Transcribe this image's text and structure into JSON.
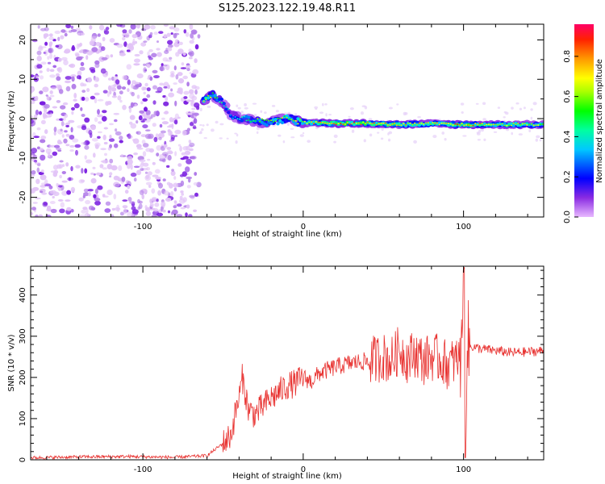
{
  "figure": {
    "title": "S125.2023.122.19.48.R11"
  },
  "chart_data": [
    {
      "type": "heatmap",
      "xlabel": "Height of straight line (km)",
      "ylabel": "Frequency (Hz)",
      "xlim": [
        -170,
        150
      ],
      "ylim": [
        -25,
        24
      ],
      "x_ticks": [
        "-100",
        "0",
        "100"
      ],
      "y_ticks": [
        "-20",
        "-10",
        "0",
        "10",
        "20"
      ],
      "colorbar": {
        "label": "Normalized spectral amplitude",
        "range": [
          0.0,
          0.96
        ],
        "ticks": [
          "0.0",
          "0.2",
          "0.4",
          "0.6",
          "0.8"
        ]
      },
      "noise_region": {
        "x_end": -65,
        "description": "scattered low-amplitude noise"
      },
      "signal_trace": [
        {
          "x": -62,
          "y": 5,
          "amp": 0.75
        },
        {
          "x": -56,
          "y": 6,
          "amp": 0.6
        },
        {
          "x": -50,
          "y": 4,
          "amp": 0.4
        },
        {
          "x": -45,
          "y": 1,
          "amp": 0.35
        },
        {
          "x": -38,
          "y": 0,
          "amp": 0.45
        },
        {
          "x": -30,
          "y": -0.5,
          "amp": 0.55
        },
        {
          "x": -20,
          "y": -1,
          "amp": 0.6
        },
        {
          "x": -10,
          "y": 0,
          "amp": 0.6
        },
        {
          "x": 0,
          "y": -1,
          "amp": 0.7
        },
        {
          "x": 20,
          "y": -1.2,
          "amp": 0.85
        },
        {
          "x": 40,
          "y": -1.2,
          "amp": 0.8
        },
        {
          "x": 60,
          "y": -1.5,
          "amp": 0.75
        },
        {
          "x": 80,
          "y": -1.3,
          "amp": 0.7
        },
        {
          "x": 98,
          "y": -1.5,
          "amp": 0.85
        },
        {
          "x": 120,
          "y": -1.5,
          "amp": 0.7
        },
        {
          "x": 150,
          "y": -1.5,
          "amp": 0.65
        }
      ]
    },
    {
      "type": "line",
      "xlabel": "Height of straight line (km)",
      "ylabel": "SNR (10 * v/v)",
      "xlim": [
        -170,
        150
      ],
      "ylim": [
        0,
        470
      ],
      "x_ticks": [
        "-100",
        "0",
        "100"
      ],
      "y_ticks": [
        "0",
        "100",
        "200",
        "300",
        "400"
      ],
      "color": "#e8312f",
      "series": [
        {
          "x": [
            -170,
            -140,
            -110,
            -80,
            -60,
            -50,
            -45,
            -42,
            -40,
            -38,
            -36,
            -34,
            -30,
            -25,
            -20,
            -15,
            -10,
            -5,
            0,
            5,
            10,
            20,
            30,
            40,
            50,
            55,
            60,
            65,
            70,
            75,
            80,
            85,
            90,
            95,
            98,
            100,
            101,
            102,
            105,
            110,
            120,
            130,
            140,
            150
          ],
          "y": [
            5,
            7,
            8,
            6,
            10,
            40,
            60,
            120,
            150,
            200,
            160,
            120,
            110,
            130,
            150,
            165,
            180,
            185,
            200,
            190,
            210,
            225,
            235,
            240,
            250,
            240,
            270,
            245,
            260,
            240,
            250,
            245,
            230,
            240,
            250,
            470,
            5,
            270,
            275,
            270,
            265,
            260,
            262,
            265
          ]
        }
      ]
    }
  ]
}
